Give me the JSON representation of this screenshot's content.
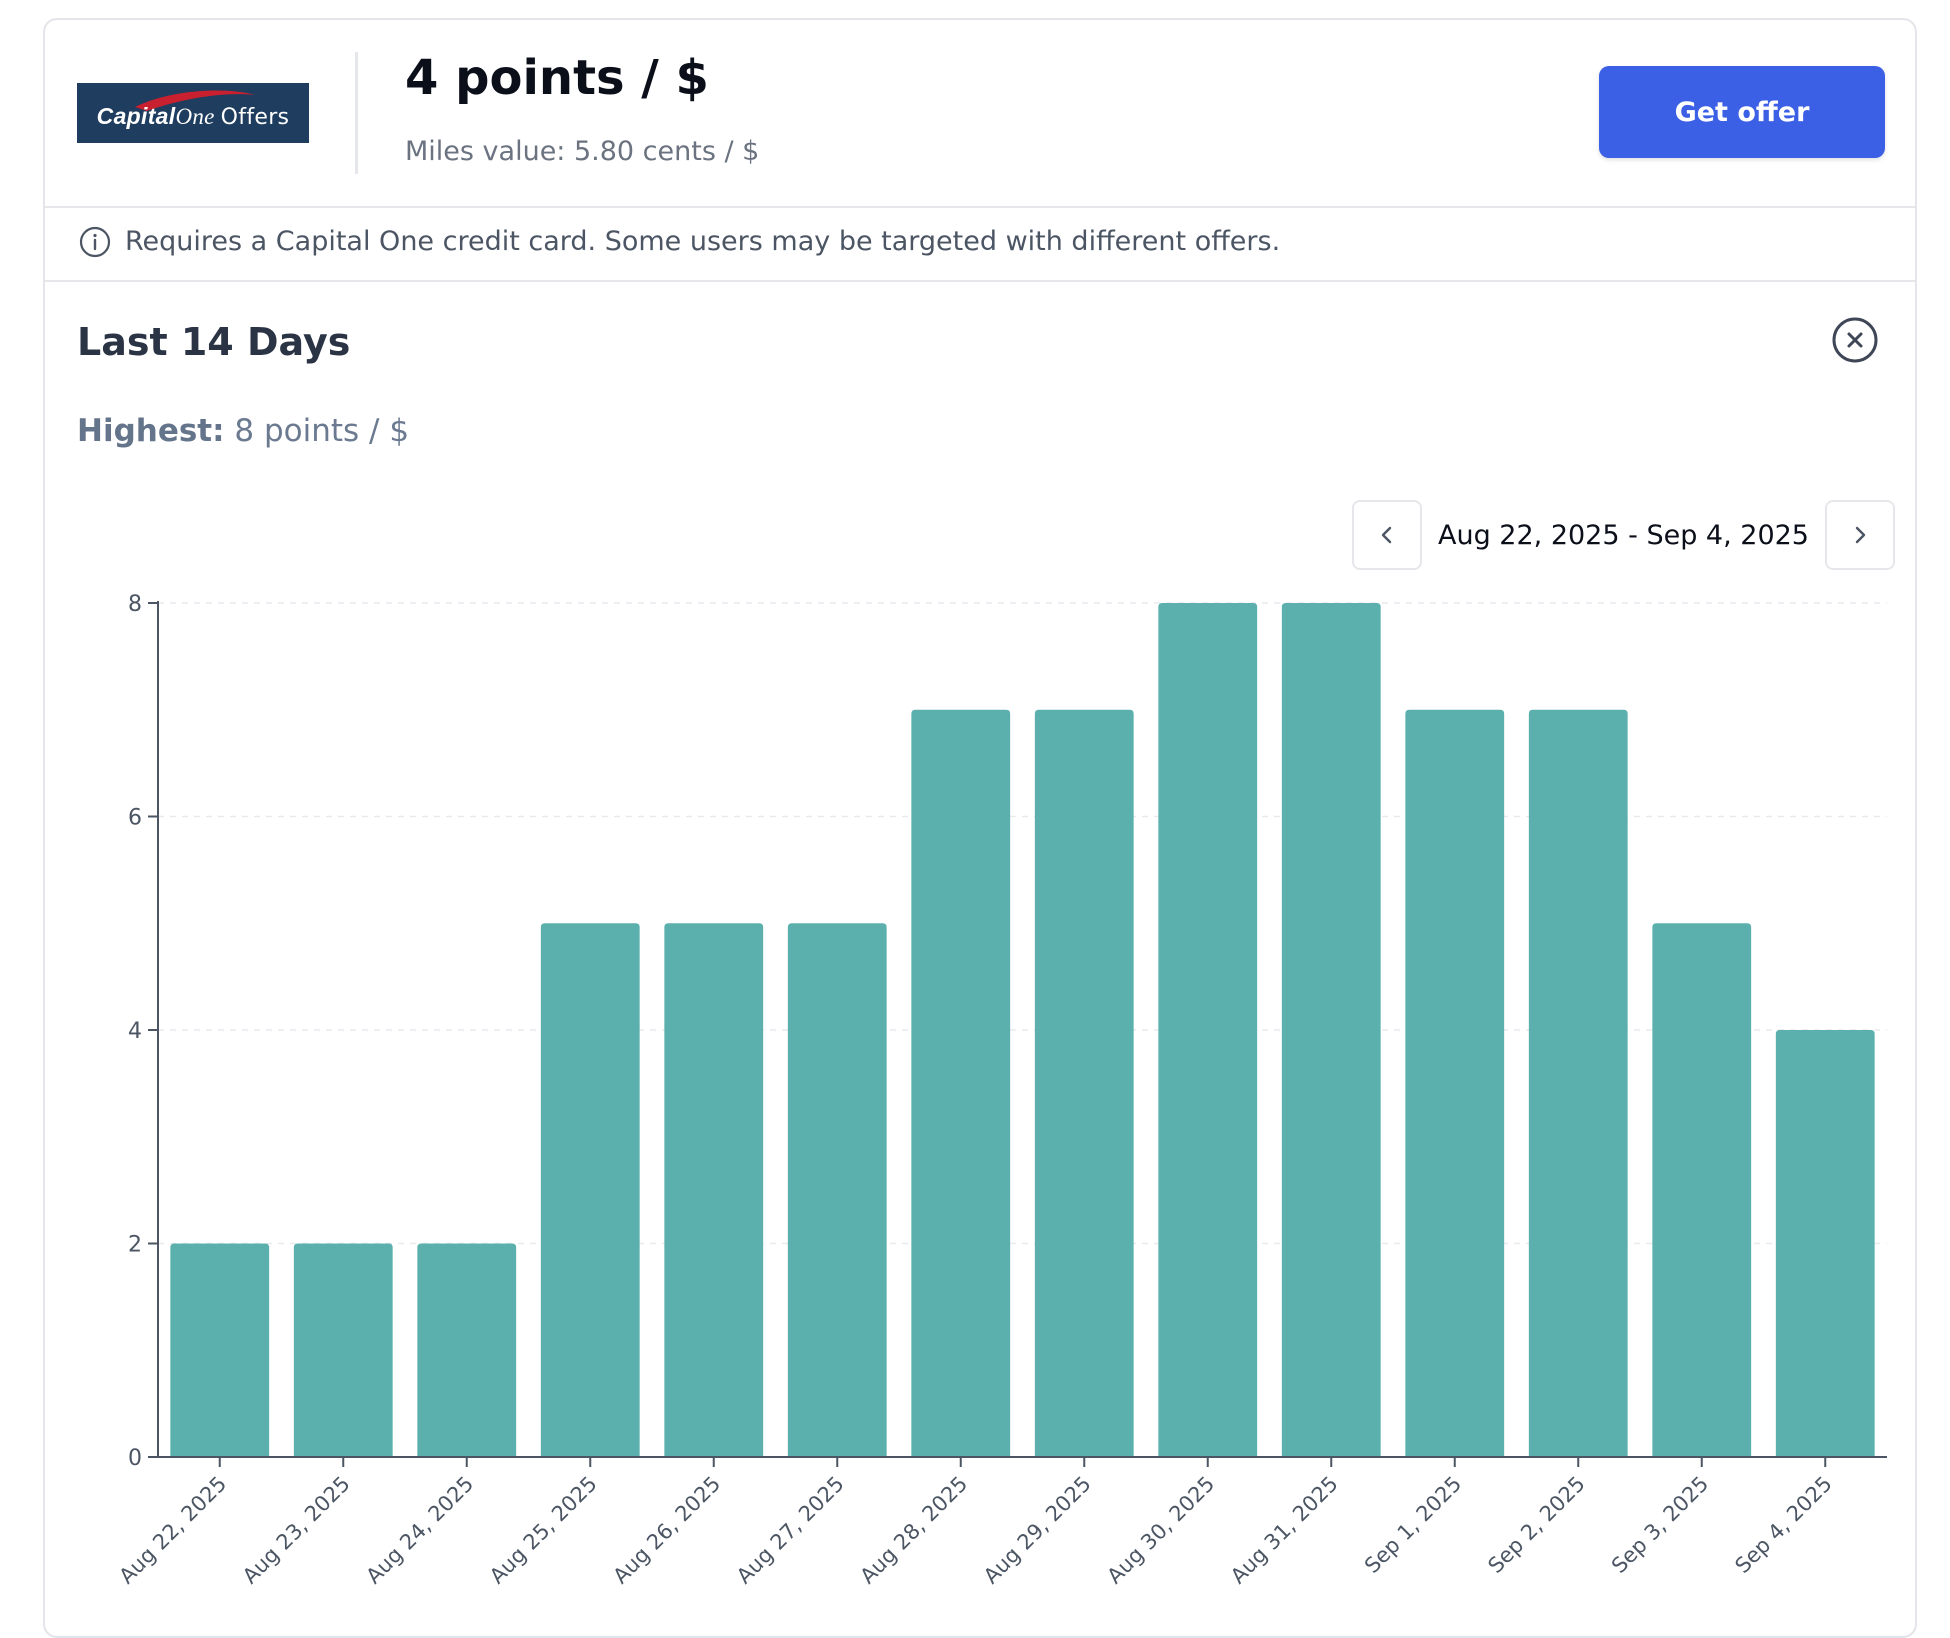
{
  "offer": {
    "logo_text": {
      "capital": "Capital",
      "one": "One",
      "offers": "Offers"
    },
    "rate": "4 points / $",
    "miles_value": "Miles value: 5.80 cents / $",
    "cta_label": "Get offer",
    "notice": "Requires a Capital One credit card. Some users may be targeted with different offers."
  },
  "history": {
    "title": "Last 14 Days",
    "highest_label": "Highest:",
    "highest_value": "8 points / $",
    "range_label": "Aug 22, 2025 - Sep 4, 2025"
  },
  "colors": {
    "bar": "#5bb0ad",
    "button": "#3b5fe5",
    "logo_bg": "#1e3d5f"
  },
  "icons": {
    "info": "info-icon",
    "close": "close-circle-icon",
    "prev": "chevron-left-icon",
    "next": "chevron-right-icon"
  },
  "chart_data": {
    "type": "bar",
    "categories": [
      "Aug 22, 2025",
      "Aug 23, 2025",
      "Aug 24, 2025",
      "Aug 25, 2025",
      "Aug 26, 2025",
      "Aug 27, 2025",
      "Aug 28, 2025",
      "Aug 29, 2025",
      "Aug 30, 2025",
      "Aug 31, 2025",
      "Sep 1, 2025",
      "Sep 2, 2025",
      "Sep 3, 2025",
      "Sep 4, 2025"
    ],
    "values": [
      2,
      2,
      2,
      5,
      5,
      5,
      7,
      7,
      8,
      8,
      7,
      7,
      5,
      4
    ],
    "yticks": [
      0,
      2,
      4,
      6,
      8
    ],
    "ylim": [
      0,
      8
    ],
    "grid": "horizontal dashed",
    "legend": "none",
    "title": "",
    "xlabel": "",
    "ylabel": ""
  }
}
